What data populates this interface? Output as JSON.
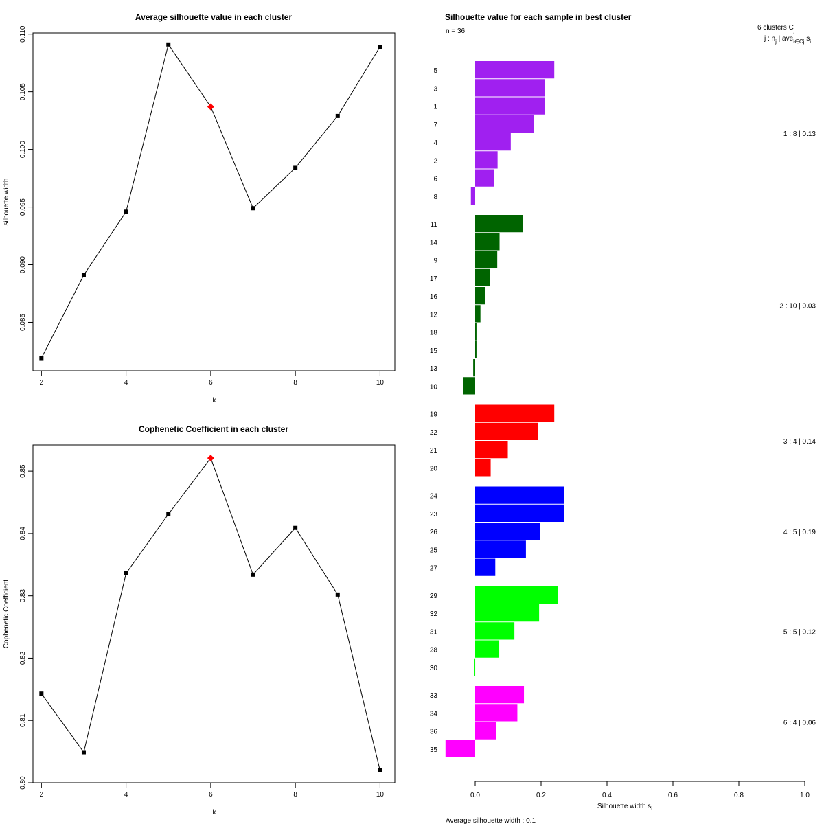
{
  "chart_data": [
    {
      "type": "line",
      "title": "Average silhouette value in each cluster",
      "xlabel": "k",
      "ylabel": "silhouette width",
      "x": [
        2,
        3,
        4,
        5,
        6,
        7,
        8,
        9,
        10
      ],
      "y": [
        0.0819,
        0.0891,
        0.0946,
        0.1091,
        0.1037,
        0.0949,
        0.0984,
        0.1029,
        0.1089
      ],
      "xlim": [
        1.8,
        10.35
      ],
      "ylim": [
        0.0808,
        0.1101
      ],
      "xticks": [
        2,
        4,
        6,
        8,
        10
      ],
      "yticks": [
        0.085,
        0.09,
        0.095,
        0.1,
        0.105,
        0.11
      ],
      "ytick_labels": [
        "0.085",
        "0.090",
        "0.095",
        "0.100",
        "0.105",
        "0.110"
      ],
      "highlight_x": 6,
      "highlight_color": "#ff0000"
    },
    {
      "type": "line",
      "title": "Cophenetic Coefficient in each cluster",
      "xlabel": "k",
      "ylabel": "Cophenetic Coefficient",
      "x": [
        2,
        3,
        4,
        5,
        6,
        7,
        8,
        9,
        10
      ],
      "y": [
        0.8143,
        0.8049,
        0.8336,
        0.8431,
        0.8521,
        0.8334,
        0.8409,
        0.8302,
        0.802
      ],
      "xlim": [
        1.8,
        10.35
      ],
      "ylim": [
        0.8,
        0.8542
      ],
      "xticks": [
        2,
        4,
        6,
        8,
        10
      ],
      "yticks": [
        0.8,
        0.81,
        0.82,
        0.83,
        0.84,
        0.85
      ],
      "ytick_labels": [
        "0.80",
        "0.81",
        "0.82",
        "0.83",
        "0.84",
        "0.85"
      ],
      "highlight_x": 6,
      "highlight_color": "#ff0000"
    },
    {
      "type": "bar",
      "orientation": "horizontal",
      "title": "Silhouette value for each sample in best cluster",
      "n_label": "n = 36",
      "header_line1": "6  clusters  C",
      "header_sub1": "j",
      "header_line2": "j :  n",
      "header_sub2": "j",
      "header_line2b": " | ave",
      "header_sub3": "i∈Cj",
      "header_line2c": " s",
      "header_sub4": "i",
      "xlabel": "Silhouette width s",
      "xlabel_sub": "i",
      "xlim": [
        -0.09,
        1.0
      ],
      "xticks": [
        0.0,
        0.2,
        0.4,
        0.6,
        0.8,
        1.0
      ],
      "xtick_labels": [
        "0.0",
        "0.2",
        "0.4",
        "0.6",
        "0.8",
        "1.0"
      ],
      "footer": "Average silhouette width :  0.1",
      "clusters": [
        {
          "summary": "1 :   8  |  0.13",
          "color": "#a020f0",
          "samples": [
            "5",
            "3",
            "1",
            "7",
            "4",
            "2",
            "6",
            "8"
          ],
          "values": [
            0.24,
            0.212,
            0.212,
            0.178,
            0.108,
            0.068,
            0.058,
            -0.013
          ]
        },
        {
          "summary": "2 :   10  |  0.03",
          "color": "#006400",
          "samples": [
            "11",
            "14",
            "9",
            "17",
            "16",
            "12",
            "18",
            "15",
            "13",
            "10"
          ],
          "values": [
            0.145,
            0.074,
            0.067,
            0.044,
            0.031,
            0.016,
            0.004,
            0.004,
            -0.006,
            -0.036
          ]
        },
        {
          "summary": "3 :   4  |  0.14",
          "color": "#ff0000",
          "samples": [
            "19",
            "22",
            "21",
            "20"
          ],
          "values": [
            0.24,
            0.19,
            0.099,
            0.047
          ]
        },
        {
          "summary": "4 :   5  |  0.19",
          "color": "#0000ff",
          "samples": [
            "24",
            "23",
            "26",
            "25",
            "27"
          ],
          "values": [
            0.27,
            0.27,
            0.196,
            0.154,
            0.061
          ]
        },
        {
          "summary": "5 :   5  |  0.12",
          "color": "#00ff00",
          "samples": [
            "29",
            "32",
            "31",
            "28",
            "30"
          ],
          "values": [
            0.25,
            0.194,
            0.119,
            0.073,
            -0.002
          ]
        },
        {
          "summary": "6 :   4  |  0.06",
          "color": "#ff00ff",
          "samples": [
            "33",
            "34",
            "36",
            "35"
          ],
          "values": [
            0.148,
            0.128,
            0.063,
            -0.09
          ]
        }
      ]
    }
  ]
}
